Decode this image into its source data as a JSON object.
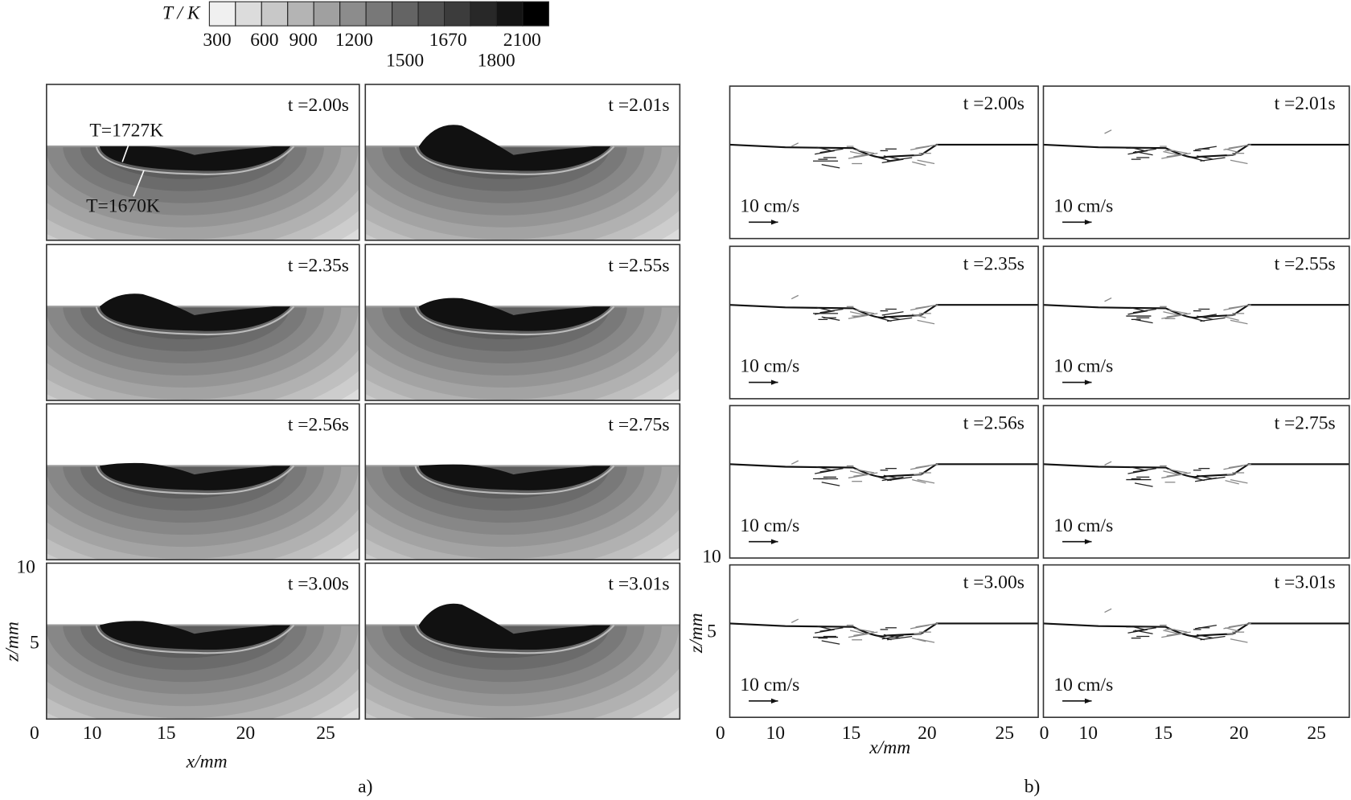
{
  "colorbar": {
    "label": "T / K",
    "ticks": [
      "300",
      "600",
      "900",
      "1200",
      "1500",
      "1670",
      "1800",
      "2100"
    ]
  },
  "panel_a": {
    "times": [
      "t =2.00s",
      "t =2.01s",
      "t =2.35s",
      "t =2.55s",
      "t =2.56s",
      "t =2.75s",
      "t =3.00s",
      "t =3.01s"
    ],
    "annotations": [
      "T=1727K",
      "T=1670K"
    ]
  },
  "panel_b": {
    "times": [
      "t =2.00s",
      "t =2.01s",
      "t =2.35s",
      "t =2.55s",
      "t =2.56s",
      "t =2.75s",
      "t =3.00s",
      "t =3.01s"
    ],
    "velocity_scale": "10 cm/s"
  },
  "axes": {
    "z_label": "z/mm",
    "x_label": "x/mm",
    "z_ticks": [
      "10",
      "5"
    ],
    "x_ticks": [
      "0",
      "10",
      "15",
      "20",
      "25"
    ]
  },
  "captions": [
    "a)",
    "b)"
  ]
}
